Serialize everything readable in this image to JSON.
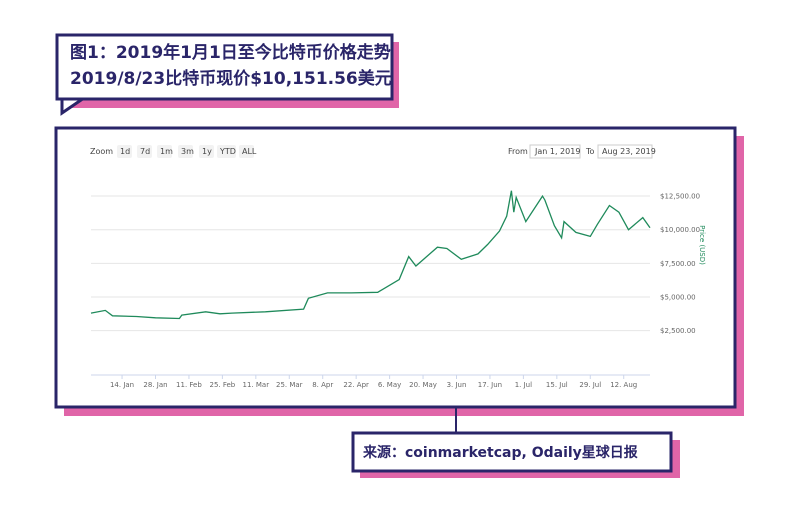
{
  "caption": {
    "line1": "图1：2019年1月1日至今比特币价格走势",
    "line2": "2019/8/23比特币现价$10,151.56美元"
  },
  "source": "来源：coinmarketcap, Odaily星球日报",
  "toolbar": {
    "zoom_label": "Zoom",
    "zoom_buttons": [
      "1d",
      "7d",
      "1m",
      "3m",
      "1y",
      "YTD",
      "ALL"
    ],
    "from_label": "From",
    "from_value": "Jan 1, 2019",
    "to_label": "To",
    "to_value": "Aug 23, 2019"
  },
  "chart_data": {
    "type": "line",
    "ylabel": "Price (USD)",
    "color": "#1f8a5b",
    "grid": true,
    "xlim": [
      "2019-01-01",
      "2019-08-23"
    ],
    "ylim": [
      -800,
      13500
    ],
    "yticks": [
      {
        "value": 2500,
        "label": "$2,500.00"
      },
      {
        "value": 5000,
        "label": "$5,000.00"
      },
      {
        "value": 7500,
        "label": "$7,500.00"
      },
      {
        "value": 10000,
        "label": "$10,000.00"
      },
      {
        "value": 12500,
        "label": "$12,500.00"
      }
    ],
    "xticks": [
      {
        "value": "2019-01-14",
        "label": "14. Jan"
      },
      {
        "value": "2019-01-28",
        "label": "28. Jan"
      },
      {
        "value": "2019-02-11",
        "label": "11. Feb"
      },
      {
        "value": "2019-02-25",
        "label": "25. Feb"
      },
      {
        "value": "2019-03-11",
        "label": "11. Mar"
      },
      {
        "value": "2019-03-25",
        "label": "25. Mar"
      },
      {
        "value": "2019-04-08",
        "label": "8. Apr"
      },
      {
        "value": "2019-04-22",
        "label": "22. Apr"
      },
      {
        "value": "2019-05-06",
        "label": "6. May"
      },
      {
        "value": "2019-05-20",
        "label": "20. May"
      },
      {
        "value": "2019-06-03",
        "label": "3. Jun"
      },
      {
        "value": "2019-06-17",
        "label": "17. Jun"
      },
      {
        "value": "2019-07-01",
        "label": "1. Jul"
      },
      {
        "value": "2019-07-15",
        "label": "15. Jul"
      },
      {
        "value": "2019-07-29",
        "label": "29. Jul"
      },
      {
        "value": "2019-08-12",
        "label": "12. Aug"
      }
    ],
    "x": [
      "2019-01-01",
      "2019-01-07",
      "2019-01-10",
      "2019-01-20",
      "2019-01-28",
      "2019-02-07",
      "2019-02-08",
      "2019-02-18",
      "2019-02-24",
      "2019-03-01",
      "2019-03-15",
      "2019-03-31",
      "2019-04-02",
      "2019-04-10",
      "2019-04-20",
      "2019-05-01",
      "2019-05-10",
      "2019-05-14",
      "2019-05-17",
      "2019-05-26",
      "2019-05-30",
      "2019-06-05",
      "2019-06-12",
      "2019-06-16",
      "2019-06-21",
      "2019-06-24",
      "2019-06-26",
      "2019-06-27",
      "2019-06-28",
      "2019-07-02",
      "2019-07-09",
      "2019-07-10",
      "2019-07-14",
      "2019-07-17",
      "2019-07-18",
      "2019-07-23",
      "2019-07-29",
      "2019-08-01",
      "2019-08-06",
      "2019-08-10",
      "2019-08-14",
      "2019-08-20",
      "2019-08-23"
    ],
    "values": [
      3800,
      4000,
      3600,
      3550,
      3450,
      3400,
      3650,
      3900,
      3750,
      3800,
      3900,
      4100,
      4900,
      5300,
      5300,
      5350,
      6300,
      8000,
      7300,
      8700,
      8600,
      7800,
      8200,
      8900,
      9900,
      11000,
      12900,
      11300,
      12400,
      10600,
      12500,
      12200,
      10300,
      9400,
      10600,
      9800,
      9500,
      10400,
      11800,
      11300,
      10000,
      10900,
      10150
    ]
  }
}
